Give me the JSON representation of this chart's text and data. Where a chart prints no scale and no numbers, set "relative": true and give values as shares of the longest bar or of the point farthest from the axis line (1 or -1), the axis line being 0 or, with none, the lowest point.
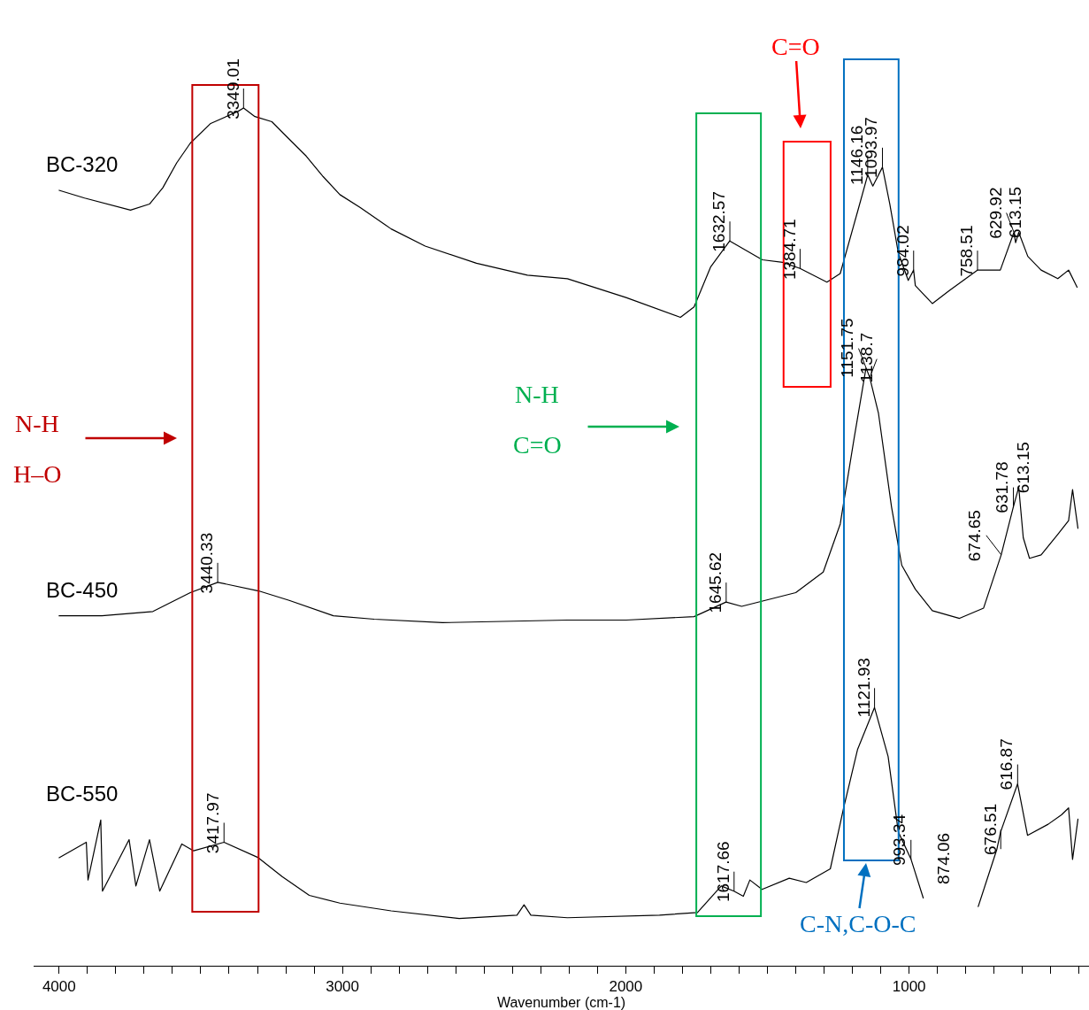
{
  "chart_data": {
    "type": "line",
    "relative": true,
    "xlabel": "Wavenumber (cm-1)",
    "xlim": [
      4090,
      365
    ],
    "xticks": [
      4000,
      {
        "value": 3900,
        "label": null
      },
      {
        "value": 3800,
        "label": null
      },
      {
        "value": 3700,
        "label": null
      },
      {
        "value": 3600,
        "label": null
      },
      {
        "value": 3500,
        "label": null
      },
      {
        "value": 3400,
        "label": null
      },
      {
        "value": 3300,
        "label": null
      },
      {
        "value": 3200,
        "label": null
      },
      {
        "value": 3100,
        "label": null
      },
      3000,
      {
        "value": 2900,
        "label": null
      },
      {
        "value": 2800,
        "label": null
      },
      {
        "value": 2700,
        "label": null
      },
      {
        "value": 2600,
        "label": null
      },
      {
        "value": 2500,
        "label": null
      },
      {
        "value": 2400,
        "label": null
      },
      {
        "value": 2300,
        "label": null
      },
      {
        "value": 2200,
        "label": null
      },
      {
        "value": 2100,
        "label": null
      },
      2000,
      {
        "value": 1900,
        "label": null
      },
      {
        "value": 1800,
        "label": null
      },
      {
        "value": 1700,
        "label": null
      },
      {
        "value": 1600,
        "label": null
      },
      {
        "value": 1500,
        "label": null
      },
      {
        "value": 1400,
        "label": null
      },
      {
        "value": 1300,
        "label": null
      },
      {
        "value": 1200,
        "label": null
      },
      {
        "value": 1100,
        "label": null
      },
      1000,
      {
        "value": 900,
        "label": null
      },
      {
        "value": 800,
        "label": null
      },
      {
        "value": 700,
        "label": null
      },
      {
        "value": 600,
        "label": null
      },
      {
        "value": 500,
        "label": null
      },
      {
        "value": 400,
        "label": null
      }
    ],
    "tick_labels": "x",
    "marker": "none",
    "line_style": "solid",
    "series": [
      {
        "name": "BC-320",
        "color": "#000000",
        "x": [
          4000,
          3910,
          3748,
          3681,
          3634,
          3585,
          3537,
          3465,
          3369,
          3349,
          3309,
          3249,
          3201,
          3128,
          3068,
          3009,
          2937,
          2828,
          2708,
          2527,
          2347,
          2206,
          1999,
          1807,
          1759,
          1700,
          1633,
          1518,
          1446,
          1385,
          1290,
          1243,
          1182,
          1146,
          1128,
          1094,
          1068,
          1038,
          1003,
          984,
          978,
          918,
          859,
          759,
          678,
          630,
          624,
          613,
          581,
          534,
          475,
          437,
          407
        ],
        "values": [
          0.904,
          0.895,
          0.881,
          0.888,
          0.907,
          0.936,
          0.959,
          0.982,
          0.996,
          1.0,
          0.99,
          0.984,
          0.968,
          0.944,
          0.92,
          0.899,
          0.884,
          0.859,
          0.839,
          0.819,
          0.805,
          0.801,
          0.779,
          0.756,
          0.768,
          0.815,
          0.845,
          0.823,
          0.82,
          0.813,
          0.797,
          0.807,
          0.879,
          0.922,
          0.909,
          0.931,
          0.888,
          0.831,
          0.799,
          0.811,
          0.793,
          0.772,
          0.787,
          0.811,
          0.811,
          0.855,
          0.843,
          0.855,
          0.827,
          0.811,
          0.801,
          0.811,
          0.791
        ]
      },
      {
        "name": "BC-450",
        "color": "#000000",
        "x": [
          4000,
          3849,
          3669,
          3537,
          3440,
          3296,
          3188,
          3032,
          2888,
          2647,
          2206,
          1999,
          1759,
          1646,
          1591,
          1400,
          1303,
          1243,
          1194,
          1152,
          1139,
          1108,
          1062,
          1026,
          978,
          918,
          822,
          737,
          675,
          632,
          613,
          597,
          575,
          534,
          475,
          437,
          423,
          404
        ],
        "values": [
          0.408,
          0.408,
          0.413,
          0.435,
          0.447,
          0.437,
          0.426,
          0.408,
          0.404,
          0.4,
          0.403,
          0.403,
          0.407,
          0.424,
          0.419,
          0.435,
          0.459,
          0.515,
          0.615,
          0.697,
          0.686,
          0.644,
          0.535,
          0.467,
          0.439,
          0.414,
          0.405,
          0.417,
          0.479,
          0.535,
          0.558,
          0.499,
          0.475,
          0.479,
          0.503,
          0.519,
          0.555,
          0.51
        ]
      },
      {
        "name": "BC-550",
        "color": "#000000",
        "x": [
          4000,
          3904,
          3898,
          3853,
          3847,
          3753,
          3729,
          3681,
          3645,
          3567,
          3525,
          3418,
          3297,
          3213,
          3117,
          3009,
          2828,
          2588,
          2384,
          2359,
          2335,
          2206,
          1881,
          1747,
          1663,
          1618,
          1585,
          1562,
          1519,
          1423,
          1363,
          1278,
          1231,
          1182,
          1122,
          1074,
          1038,
          993,
          950,
          860,
          756,
          690,
          677,
          617,
          582,
          509,
          462,
          437,
          423,
          404
        ],
        "values": [
          0.126,
          0.144,
          0.1,
          0.17,
          0.087,
          0.147,
          0.093,
          0.147,
          0.087,
          0.142,
          0.134,
          0.144,
          0.126,
          0.104,
          0.082,
          0.073,
          0.064,
          0.055,
          0.059,
          0.071,
          0.059,
          0.056,
          0.059,
          0.062,
          0.093,
          0.087,
          0.081,
          0.1,
          0.089,
          0.102,
          0.097,
          0.113,
          0.184,
          0.252,
          0.301,
          0.244,
          0.156,
          0.124,
          0.079,
          null,
          0.069,
          0.136,
          0.156,
          0.212,
          0.152,
          0.165,
          0.176,
          0.184,
          0.124,
          0.171
        ]
      }
    ],
    "annotations": [
      {
        "text": "3349.01",
        "x": 3349.01,
        "y": 1.0
      },
      {
        "text": "1632.57",
        "x": 1632.57,
        "y": 0.845
      },
      {
        "text": "1384.71",
        "x": 1384.71,
        "y": 0.813
      },
      {
        "text": "1146.16",
        "x": 1146.16,
        "y": 0.922
      },
      {
        "text": "1093.97",
        "x": 1093.97,
        "y": 0.931
      },
      {
        "text": "984.02",
        "x": 984.02,
        "y": 0.811
      },
      {
        "text": "758.51",
        "x": 758.51,
        "y": 0.811
      },
      {
        "text": "629.92",
        "x": 629.92,
        "y": 0.855
      },
      {
        "text": "613.15",
        "x": 613.15,
        "y": 0.855
      },
      {
        "text": "3440.33",
        "x": 3440.33,
        "y": 0.447
      },
      {
        "text": "1645.62",
        "x": 1645.62,
        "y": 0.424
      },
      {
        "text": "1151.75",
        "x": 1151.75,
        "y": 0.697
      },
      {
        "text": "1138.7",
        "x": 1138.7,
        "y": 0.686
      },
      {
        "text": "674.65",
        "x": 674.65,
        "y": 0.479
      },
      {
        "text": "631.78",
        "x": 631.78,
        "y": 0.535
      },
      {
        "text": "613.15",
        "x": 613.15,
        "y": 0.558
      },
      {
        "text": "3417.97",
        "x": 3417.97,
        "y": 0.144
      },
      {
        "text": "1617.66",
        "x": 1617.66,
        "y": 0.087
      },
      {
        "text": "1121.93",
        "x": 1121.93,
        "y": 0.301
      },
      {
        "text": "993.34",
        "x": 993.34,
        "y": 0.124
      },
      {
        "text": "676.51",
        "x": 676.51,
        "y": 0.136
      },
      {
        "text": "616.87",
        "x": 616.87,
        "y": 0.212
      },
      "874.06",
      "N-H",
      "H–O",
      "N-H",
      "C=O",
      "C=O",
      "C-N,C-O-C"
    ]
  }
}
